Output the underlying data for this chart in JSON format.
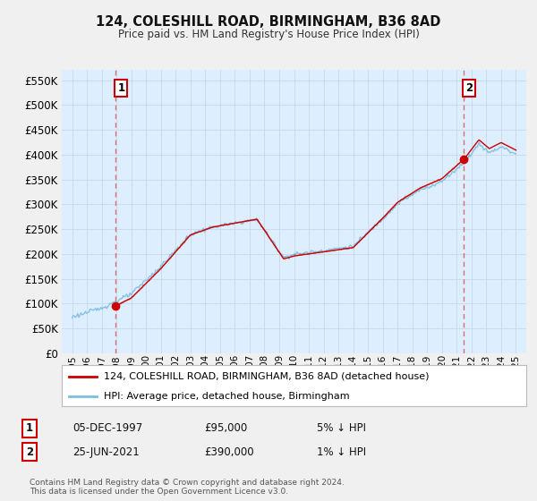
{
  "title": "124, COLESHILL ROAD, BIRMINGHAM, B36 8AD",
  "subtitle": "Price paid vs. HM Land Registry's House Price Index (HPI)",
  "legend_line1": "124, COLESHILL ROAD, BIRMINGHAM, B36 8AD (detached house)",
  "legend_line2": "HPI: Average price, detached house, Birmingham",
  "footer": "Contains HM Land Registry data © Crown copyright and database right 2024.\nThis data is licensed under the Open Government Licence v3.0.",
  "table_row1": [
    "1",
    "05-DEC-1997",
    "£95,000",
    "5% ↓ HPI"
  ],
  "table_row2": [
    "2",
    "25-JUN-2021",
    "£390,000",
    "1% ↓ HPI"
  ],
  "hpi_color": "#7bbde0",
  "price_color": "#cc0000",
  "dashed_color": "#e06060",
  "background_color": "#f0f0f0",
  "plot_bg_color": "#ddeeff",
  "grid_color": "#c8d8e8",
  "ylim": [
    0,
    570000
  ],
  "yticks": [
    0,
    50000,
    100000,
    150000,
    200000,
    250000,
    300000,
    350000,
    400000,
    450000,
    500000,
    550000
  ],
  "sale1_year": 1997.917,
  "sale1_price": 95000,
  "sale2_year": 2021.458,
  "sale2_price": 390000
}
